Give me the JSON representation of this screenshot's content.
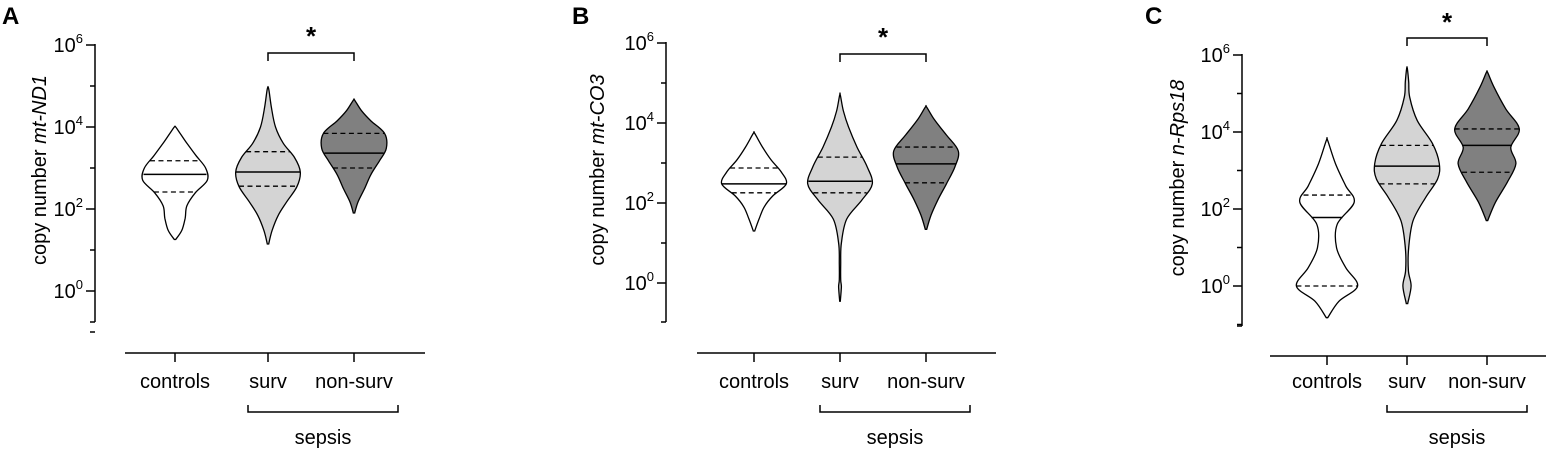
{
  "chart_data": [
    {
      "panel": "A",
      "type": "violin",
      "ylabel_prefix": "copy number ",
      "ylabel_gene": "mt-ND1",
      "yscale": "log10",
      "ylim": [
        0.05,
        1000000
      ],
      "yticks": [
        {
          "base": "10",
          "exp": "6"
        },
        {
          "base": "10",
          "exp": "4"
        },
        {
          "base": "10",
          "exp": "2"
        },
        {
          "base": "10",
          "exp": "0"
        }
      ],
      "categories": [
        "controls",
        "surv",
        "non-surv"
      ],
      "group_label": "sepsis",
      "group_members": [
        "surv",
        "non-surv"
      ],
      "significance": {
        "between": [
          "surv",
          "non-surv"
        ],
        "label": "*"
      },
      "series": [
        {
          "category": "controls",
          "color": "#ffffff",
          "median": 700,
          "q1": 260,
          "q3": 1500,
          "min": 18,
          "max": 10000,
          "density": [
            [
              18,
              0.02
            ],
            [
              30,
              0.2
            ],
            [
              60,
              0.3
            ],
            [
              120,
              0.35
            ],
            [
              250,
              0.6
            ],
            [
              500,
              0.95
            ],
            [
              1000,
              0.9
            ],
            [
              2000,
              0.62
            ],
            [
              4000,
              0.35
            ],
            [
              7000,
              0.15
            ],
            [
              10000,
              0.02
            ]
          ]
        },
        {
          "category": "surv",
          "color": "#d4d4d4",
          "median": 800,
          "q1": 360,
          "q3": 2500,
          "min": 14,
          "max": 85000,
          "density": [
            [
              14,
              0.02
            ],
            [
              30,
              0.12
            ],
            [
              70,
              0.3
            ],
            [
              150,
              0.55
            ],
            [
              350,
              0.85
            ],
            [
              800,
              0.95
            ],
            [
              1800,
              0.78
            ],
            [
              4000,
              0.45
            ],
            [
              10000,
              0.22
            ],
            [
              30000,
              0.1
            ],
            [
              85000,
              0.02
            ]
          ]
        },
        {
          "category": "non-surv",
          "color": "#808080",
          "median": 2300,
          "q1": 1000,
          "q3": 7000,
          "min": 80,
          "max": 45000,
          "density": [
            [
              80,
              0.02
            ],
            [
              150,
              0.12
            ],
            [
              300,
              0.3
            ],
            [
              700,
              0.5
            ],
            [
              1500,
              0.75
            ],
            [
              3000,
              0.95
            ],
            [
              7000,
              0.9
            ],
            [
              14000,
              0.5
            ],
            [
              25000,
              0.22
            ],
            [
              45000,
              0.02
            ]
          ]
        }
      ]
    },
    {
      "panel": "B",
      "type": "violin",
      "ylabel_prefix": "copy number ",
      "ylabel_gene": "mt-CO3",
      "yscale": "log10",
      "ylim": [
        0.2,
        1000000
      ],
      "yticks": [
        {
          "base": "10",
          "exp": "6"
        },
        {
          "base": "10",
          "exp": "4"
        },
        {
          "base": "10",
          "exp": "2"
        },
        {
          "base": "10",
          "exp": "0"
        }
      ],
      "categories": [
        "controls",
        "surv",
        "non-surv"
      ],
      "group_label": "sepsis",
      "group_members": [
        "surv",
        "non-surv"
      ],
      "significance": {
        "between": [
          "surv",
          "non-surv"
        ],
        "label": "*"
      },
      "series": [
        {
          "category": "controls",
          "color": "#ffffff",
          "median": 300,
          "q1": 180,
          "q3": 750,
          "min": 20,
          "max": 5500,
          "density": [
            [
              20,
              0.02
            ],
            [
              40,
              0.15
            ],
            [
              80,
              0.3
            ],
            [
              150,
              0.55
            ],
            [
              300,
              0.95
            ],
            [
              600,
              0.8
            ],
            [
              1200,
              0.5
            ],
            [
              2500,
              0.25
            ],
            [
              5500,
              0.02
            ]
          ]
        },
        {
          "category": "surv",
          "color": "#d4d4d4",
          "median": 350,
          "q1": 180,
          "q3": 1400,
          "min": 0.35,
          "max": 50000,
          "density": [
            [
              0.35,
              0.01
            ],
            [
              0.8,
              0.04
            ],
            [
              1.2,
              0.02
            ],
            [
              3,
              0.02
            ],
            [
              10,
              0.04
            ],
            [
              40,
              0.2
            ],
            [
              120,
              0.65
            ],
            [
              300,
              0.95
            ],
            [
              800,
              0.8
            ],
            [
              2500,
              0.5
            ],
            [
              8000,
              0.25
            ],
            [
              20000,
              0.1
            ],
            [
              50000,
              0.01
            ]
          ]
        },
        {
          "category": "non-surv",
          "color": "#808080",
          "median": 950,
          "q1": 320,
          "q3": 2500,
          "min": 22,
          "max": 25000,
          "density": [
            [
              22,
              0.02
            ],
            [
              50,
              0.15
            ],
            [
              120,
              0.35
            ],
            [
              300,
              0.6
            ],
            [
              800,
              0.85
            ],
            [
              2000,
              0.95
            ],
            [
              5000,
              0.6
            ],
            [
              12000,
              0.25
            ],
            [
              25000,
              0.02
            ]
          ]
        }
      ]
    },
    {
      "panel": "C",
      "type": "violin",
      "ylabel_prefix": "copy number ",
      "ylabel_gene": "n-Rps18",
      "yscale": "log10",
      "ylim": [
        0.08,
        1000000
      ],
      "yticks": [
        {
          "base": "10",
          "exp": "6"
        },
        {
          "base": "10",
          "exp": "4"
        },
        {
          "base": "10",
          "exp": "2"
        },
        {
          "base": "10",
          "exp": "0"
        }
      ],
      "categories": [
        "controls",
        "surv",
        "non-surv"
      ],
      "group_label": "sepsis",
      "group_members": [
        "surv",
        "non-surv"
      ],
      "significance": {
        "between": [
          "surv",
          "non-surv"
        ],
        "label": "*"
      },
      "series": [
        {
          "category": "controls",
          "color": "#ffffff",
          "median": 60,
          "q1": 1,
          "q3": 230,
          "min": 0.15,
          "max": 6000,
          "density": [
            [
              0.15,
              0.02
            ],
            [
              0.4,
              0.35
            ],
            [
              1,
              0.9
            ],
            [
              3,
              0.55
            ],
            [
              10,
              0.28
            ],
            [
              40,
              0.3
            ],
            [
              150,
              0.8
            ],
            [
              400,
              0.55
            ],
            [
              1500,
              0.25
            ],
            [
              6000,
              0.02
            ]
          ]
        },
        {
          "category": "surv",
          "color": "#d4d4d4",
          "median": 1300,
          "q1": 450,
          "q3": 4500,
          "min": 0.35,
          "max": 450000,
          "density": [
            [
              0.35,
              0.02
            ],
            [
              1,
              0.12
            ],
            [
              2.5,
              0.04
            ],
            [
              10,
              0.05
            ],
            [
              50,
              0.18
            ],
            [
              200,
              0.55
            ],
            [
              600,
              0.9
            ],
            [
              1500,
              0.95
            ],
            [
              5000,
              0.75
            ],
            [
              20000,
              0.3
            ],
            [
              80000,
              0.08
            ],
            [
              200000,
              0.05
            ],
            [
              450000,
              0.01
            ]
          ]
        },
        {
          "category": "non-surv",
          "color": "#808080",
          "median": 4500,
          "q1": 900,
          "q3": 12000,
          "min": 50,
          "max": 350000,
          "density": [
            [
              50,
              0.02
            ],
            [
              150,
              0.25
            ],
            [
              500,
              0.6
            ],
            [
              1500,
              0.85
            ],
            [
              4000,
              0.7
            ],
            [
              12000,
              0.95
            ],
            [
              40000,
              0.55
            ],
            [
              150000,
              0.2
            ],
            [
              350000,
              0.02
            ]
          ]
        }
      ]
    }
  ]
}
